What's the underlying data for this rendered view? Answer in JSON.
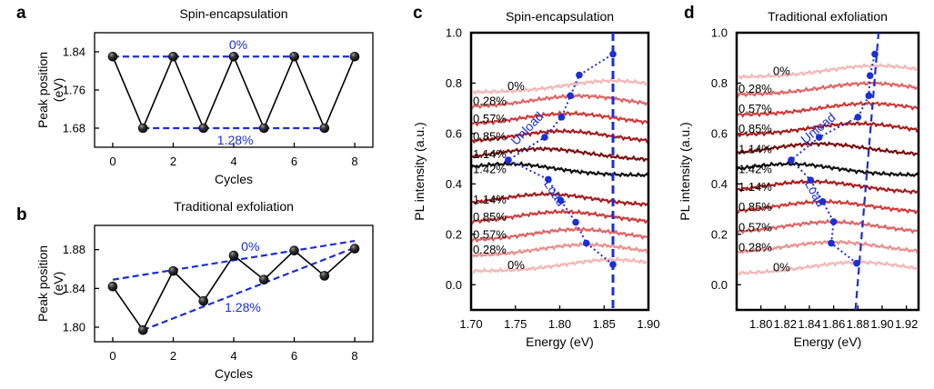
{
  "chart_data": [
    {
      "panel": "a",
      "type": "line",
      "title": "Spin-encapsulation",
      "xlabel": "Cycles",
      "ylabel": "Peak position (eV)",
      "xlim": [
        -0.6,
        8.6
      ],
      "ylim": [
        1.64,
        1.88
      ],
      "xticks": [
        0,
        2,
        4,
        6,
        8
      ],
      "yticks": [
        "1.68",
        "1.76",
        "1.84"
      ],
      "series": [
        {
          "x": [
            0,
            1,
            2,
            3,
            4,
            5,
            6,
            7,
            8
          ],
          "y": [
            1.83,
            1.68,
            1.83,
            1.68,
            1.83,
            1.68,
            1.83,
            1.68,
            1.83
          ]
        }
      ],
      "guides": [
        {
          "label": "0%",
          "from": [
            0,
            1.83
          ],
          "to": [
            8,
            1.83
          ]
        },
        {
          "label": "1.28%",
          "from": [
            1,
            1.68
          ],
          "to": [
            7,
            1.68
          ]
        }
      ],
      "colors": {
        "points": "#1a1a1a",
        "guides": "#1a2fd6"
      }
    },
    {
      "panel": "b",
      "type": "line",
      "title": "Traditional exfoliation",
      "xlabel": "Cycles",
      "ylabel": "Peak position (eV)",
      "xlim": [
        -0.6,
        8.6
      ],
      "ylim": [
        1.785,
        1.905
      ],
      "xticks": [
        0,
        2,
        4,
        6,
        8
      ],
      "yticks": [
        "1.80",
        "1.84",
        "1.88"
      ],
      "series": [
        {
          "x": [
            0,
            1,
            2,
            3,
            4,
            5,
            6,
            7,
            8
          ],
          "y": [
            1.842,
            1.797,
            1.858,
            1.827,
            1.874,
            1.849,
            1.879,
            1.853,
            1.881
          ]
        }
      ],
      "guides": [
        {
          "label": "0%",
          "from": [
            0,
            1.849
          ],
          "to": [
            8,
            1.889
          ]
        },
        {
          "label": "1.28%",
          "from": [
            1,
            1.797
          ],
          "to": [
            8,
            1.882
          ]
        }
      ],
      "colors": {
        "points": "#1a1a1a",
        "guides": "#1a2fd6"
      }
    },
    {
      "panel": "c",
      "type": "line",
      "title": "Spin-encapsulation",
      "xlabel": "Energy (eV)",
      "ylabel": "PL intensity (a.u.)",
      "xlim": [
        1.7,
        1.9
      ],
      "ylim": [
        -0.1,
        1.0
      ],
      "xticks": [
        "1.70",
        "1.75",
        "1.80",
        "1.85",
        "1.90"
      ],
      "yticks": [
        "0.0",
        "0.2",
        "0.4",
        "0.6",
        "0.8",
        "1.0"
      ],
      "strain_labels": [
        "0%",
        "0.28%",
        "0.57%",
        "0.85%",
        "1.14%",
        "1.42%",
        "1.14%",
        "0.85%",
        "0.57%",
        "0.28%",
        "0%"
      ],
      "series": [
        {
          "name": "0%",
          "offset": 0.07,
          "peak_x": 1.86,
          "color": "#f4b6b6"
        },
        {
          "name": "0.28%",
          "offset": 0.13,
          "peak_x": 1.83,
          "color": "#ec8e8e"
        },
        {
          "name": "0.57%",
          "offset": 0.19,
          "peak_x": 1.82,
          "color": "#e06464"
        },
        {
          "name": "0.85%",
          "offset": 0.26,
          "peak_x": 1.803,
          "color": "#cf3a3a"
        },
        {
          "name": "1.14%",
          "offset": 0.33,
          "peak_x": 1.785,
          "color": "#a81c1c"
        },
        {
          "name": "1.42%",
          "offset": 0.45,
          "peak_x": 1.742,
          "color": "#111111"
        },
        {
          "name": "1.14%",
          "offset": 0.51,
          "peak_x": 1.78,
          "color": "#7a0f0f"
        },
        {
          "name": "0.85%",
          "offset": 0.58,
          "peak_x": 1.803,
          "color": "#a81c1c"
        },
        {
          "name": "0.57%",
          "offset": 0.65,
          "peak_x": 1.81,
          "color": "#cf3a3a"
        },
        {
          "name": "0.28%",
          "offset": 0.72,
          "peak_x": 1.822,
          "color": "#e06464"
        },
        {
          "name": "0%",
          "offset": 0.78,
          "peak_x": 1.86,
          "color": "#f4b6b6"
        }
      ],
      "peak_markers": [
        {
          "x": 1.86,
          "y": 0.08
        },
        {
          "x": 1.83,
          "y": 0.165
        },
        {
          "x": 1.818,
          "y": 0.248
        },
        {
          "x": 1.801,
          "y": 0.335
        },
        {
          "x": 1.787,
          "y": 0.418
        },
        {
          "x": 1.742,
          "y": 0.495
        },
        {
          "x": 1.783,
          "y": 0.585
        },
        {
          "x": 1.802,
          "y": 0.665
        },
        {
          "x": 1.812,
          "y": 0.75
        },
        {
          "x": 1.822,
          "y": 0.832
        },
        {
          "x": 1.86,
          "y": 0.915
        }
      ],
      "vertical_guide_x": 1.86,
      "annotations": [
        "Unload",
        "Load"
      ],
      "colors": {
        "markers": "#1a2fd6"
      }
    },
    {
      "panel": "d",
      "type": "line",
      "title": "Traditional exfoliation",
      "xlabel": "Energy (eV)",
      "ylabel": "PL intensity (a.u.)",
      "xlim": [
        1.78,
        1.93
      ],
      "ylim": [
        -0.1,
        1.0
      ],
      "xticks": [
        "1.80",
        "1.82",
        "1.84",
        "1.86",
        "1.88",
        "1.90",
        "1.92"
      ],
      "yticks": [
        "0.0",
        "0.2",
        "0.4",
        "0.6",
        "0.8",
        "1.0"
      ],
      "strain_labels": [
        "0%",
        "0.28%",
        "0.57%",
        "0.85%",
        "1.14%",
        "1.42%",
        "1.14%",
        "0.85%",
        "0.57%",
        "0.28%",
        "0%"
      ],
      "series": [
        {
          "name": "0%",
          "offset": 0.06,
          "peak_x": 1.88,
          "color": "#f4b6b6"
        },
        {
          "name": "0.28%",
          "offset": 0.14,
          "peak_x": 1.86,
          "color": "#ec8e8e"
        },
        {
          "name": "0.57%",
          "offset": 0.22,
          "peak_x": 1.858,
          "color": "#e06464"
        },
        {
          "name": "0.85%",
          "offset": 0.3,
          "peak_x": 1.852,
          "color": "#cf3a3a"
        },
        {
          "name": "1.14%",
          "offset": 0.38,
          "peak_x": 1.842,
          "color": "#a81c1c"
        },
        {
          "name": "1.42%",
          "offset": 0.45,
          "peak_x": 1.823,
          "color": "#111111"
        },
        {
          "name": "1.14%",
          "offset": 0.53,
          "peak_x": 1.848,
          "color": "#7a0f0f"
        },
        {
          "name": "0.85%",
          "offset": 0.61,
          "peak_x": 1.88,
          "color": "#a81c1c"
        },
        {
          "name": "0.57%",
          "offset": 0.69,
          "peak_x": 1.889,
          "color": "#cf3a3a"
        },
        {
          "name": "0.28%",
          "offset": 0.77,
          "peak_x": 1.89,
          "color": "#e06464"
        },
        {
          "name": "0%",
          "offset": 0.84,
          "peak_x": 1.895,
          "color": "#f4b6b6"
        }
      ],
      "peak_markers": [
        {
          "x": 1.879,
          "y": 0.085
        },
        {
          "x": 1.858,
          "y": 0.165
        },
        {
          "x": 1.86,
          "y": 0.25
        },
        {
          "x": 1.851,
          "y": 0.33
        },
        {
          "x": 1.841,
          "y": 0.415
        },
        {
          "x": 1.825,
          "y": 0.495
        },
        {
          "x": 1.848,
          "y": 0.585
        },
        {
          "x": 1.88,
          "y": 0.665
        },
        {
          "x": 1.889,
          "y": 0.75
        },
        {
          "x": 1.89,
          "y": 0.83
        },
        {
          "x": 1.894,
          "y": 0.915
        }
      ],
      "vertical_guide": {
        "from": [
          1.878,
          -0.1
        ],
        "to": [
          1.897,
          1.0
        ]
      },
      "annotations": [
        "Unload",
        "Load"
      ],
      "colors": {
        "markers": "#1a2fd6"
      }
    }
  ]
}
